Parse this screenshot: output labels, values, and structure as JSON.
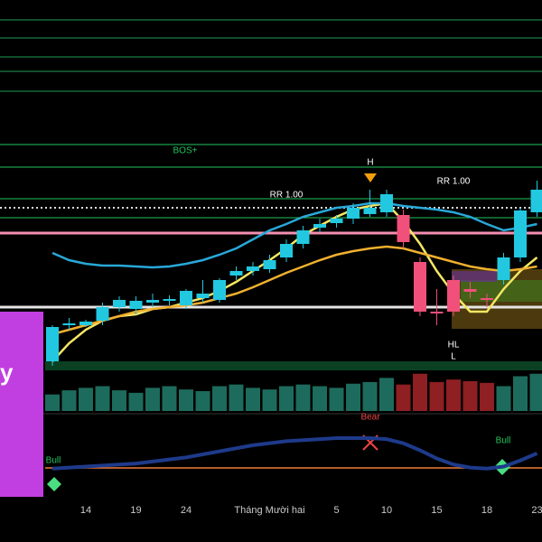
{
  "chart_data": {
    "type": "candlestick",
    "categories": [
      null,
      null,
      "14",
      null,
      null,
      "19",
      null,
      null,
      "24",
      null,
      null,
      null,
      null,
      "Tháng Mười hai",
      null,
      null,
      null,
      "5",
      null,
      null,
      "10",
      null,
      null,
      "15",
      null,
      null,
      "18",
      null,
      null,
      "23"
    ],
    "open": [
      60,
      100,
      100,
      105,
      120,
      118,
      125,
      127,
      122,
      130,
      128,
      155,
      160,
      162,
      175,
      190,
      208,
      213,
      218,
      223,
      225,
      222,
      170,
      115,
      150,
      140,
      130,
      150,
      175,
      225
    ],
    "high": [
      100,
      108,
      106,
      125,
      132,
      132,
      135,
      133,
      140,
      150,
      152,
      165,
      170,
      178,
      195,
      210,
      218,
      222,
      235,
      250,
      250,
      228,
      175,
      140,
      155,
      148,
      135,
      180,
      230,
      260
    ],
    "low": [
      55,
      95,
      98,
      100,
      115,
      112,
      120,
      122,
      118,
      125,
      125,
      150,
      155,
      158,
      170,
      185,
      203,
      208,
      212,
      220,
      220,
      185,
      110,
      100,
      110,
      130,
      120,
      145,
      170,
      220
    ],
    "close": [
      98,
      102,
      104,
      120,
      128,
      127,
      128,
      129,
      138,
      135,
      150,
      160,
      165,
      172,
      190,
      205,
      212,
      218,
      230,
      230,
      245,
      192,
      115,
      113,
      115,
      137,
      128,
      175,
      227,
      250
    ],
    "up_color": "#22c8e0",
    "down_color": "#f0507a",
    "ylim": [
      0,
      460
    ],
    "series": [
      {
        "color": "#f5e663",
        "values": [
          60,
          80,
          95,
          105,
          110,
          112,
          118,
          120,
          125,
          130,
          138,
          148,
          160,
          172,
          185,
          200,
          210,
          220,
          228,
          232,
          235,
          215,
          190,
          160,
          135,
          115,
          115,
          140,
          160,
          175
        ]
      },
      {
        "color": "#29a8d8",
        "values": [
          180,
          172,
          168,
          166,
          166,
          165,
          164,
          165,
          168,
          172,
          178,
          185,
          195,
          205,
          212,
          220,
          225,
          230,
          232,
          235,
          235,
          232,
          230,
          228,
          225,
          220,
          212,
          205,
          208,
          212
        ]
      },
      {
        "color": "#f0b030",
        "values": [
          90,
          95,
          100,
          105,
          110,
          115,
          118,
          120,
          122,
          125,
          130,
          135,
          142,
          150,
          158,
          165,
          172,
          178,
          182,
          185,
          187,
          185,
          180,
          175,
          170,
          165,
          162,
          160,
          162,
          165
        ]
      }
    ],
    "levels": [
      {
        "value": 438,
        "color": "#1f9d55"
      },
      {
        "value": 418,
        "color": "#1f9d55"
      },
      {
        "value": 397,
        "color": "#1f9d55"
      },
      {
        "value": 381,
        "color": "#1f9d55"
      },
      {
        "value": 359,
        "color": "#1f9d55"
      },
      {
        "value": 300,
        "color": "#22c55e"
      },
      {
        "value": 275,
        "color": "#22c55e"
      },
      {
        "value": 240,
        "color": "#22c55e"
      },
      {
        "value": 219,
        "color": "#22c55e"
      },
      {
        "value": 230,
        "color": "#dddddd"
      },
      {
        "value": 202,
        "color": "#f48fb1"
      },
      {
        "value": 120,
        "color": "#e5e5e5"
      }
    ],
    "volume": {
      "values": [
        20,
        25,
        28,
        30,
        25,
        22,
        28,
        30,
        26,
        24,
        30,
        32,
        28,
        26,
        30,
        32,
        30,
        28,
        33,
        35,
        40,
        32,
        45,
        35,
        38,
        36,
        34,
        30,
        42,
        45
      ],
      "ylim": [
        0,
        60
      ],
      "up_color": "#1d6b5c",
      "down_color": "#8e1f22"
    },
    "oscillator": {
      "values": [
        10,
        11,
        12,
        13,
        14,
        15,
        17,
        19,
        21,
        24,
        27,
        30,
        33,
        35,
        37,
        38,
        39,
        40,
        40,
        40,
        39,
        35,
        28,
        20,
        14,
        11,
        10,
        12,
        18,
        25
      ],
      "ylim": [
        0,
        40
      ],
      "color": "#1e3a8a"
    },
    "annotations": [
      {
        "text": "BOS+",
        "color": "#22c55e"
      },
      {
        "text": "H",
        "color": "#ffffff"
      },
      {
        "text": "RR 1.00",
        "color": "#ffffff"
      },
      {
        "text": "RR 1.00",
        "color": "#ffffff"
      },
      {
        "text": "HL",
        "color": "#ffffff"
      },
      {
        "text": "L",
        "color": "#ffffff"
      },
      {
        "text": "Bear",
        "color": "#ef4444"
      },
      {
        "text": "Bull",
        "color": "#22c55e"
      },
      {
        "text": "Bull",
        "color": "#22c55e"
      }
    ],
    "badge": "y"
  }
}
